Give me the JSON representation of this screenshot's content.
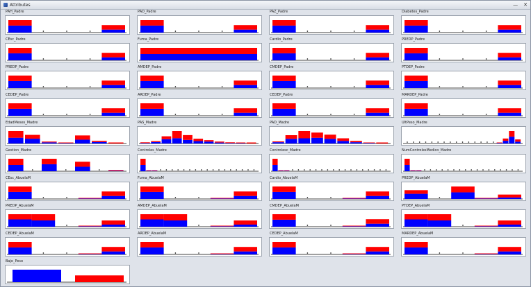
{
  "window": {
    "title": "Attributes",
    "minimize_label": "—",
    "close_label": "✕"
  },
  "colors": {
    "class_1": "#0000ff",
    "class_2": "#ff0000",
    "axis": "#000000"
  },
  "panels": [
    {
      "title": "PAH_Padre",
      "type": "binary"
    },
    {
      "title": "PAD_Padre",
      "type": "binary"
    },
    {
      "title": "PAZ_Padre",
      "type": "binary"
    },
    {
      "title": "Diabetes_Padre",
      "type": "binary"
    },
    {
      "title": "CEsc_Padre",
      "type": "binary"
    },
    {
      "title": "Fuma_Padre",
      "type": "wide"
    },
    {
      "title": "Cardio_Padre",
      "type": "binary"
    },
    {
      "title": "PREDP_Padre",
      "type": "binary"
    },
    {
      "title": "PREDP_Padre",
      "type": "binary"
    },
    {
      "title": "AMDEP_Padre",
      "type": "binary"
    },
    {
      "title": "CMDEP_Padre",
      "type": "binary"
    },
    {
      "title": "PTDEP_Padre",
      "type": "binary"
    },
    {
      "title": "CEDEP_Padre",
      "type": "binary"
    },
    {
      "title": "ARDEP_Padre",
      "type": "binary"
    },
    {
      "title": "CEDEP_Padre",
      "type": "binary"
    },
    {
      "title": "MARDEP_Padre",
      "type": "binary"
    },
    {
      "title": "EdadMeses_Madre",
      "type": "ordinal"
    },
    {
      "title": "PAS_Madre",
      "type": "spread"
    },
    {
      "title": "PAD_Madre",
      "type": "spread2"
    },
    {
      "title": "UltPeso_Madre",
      "type": "skew_right"
    },
    {
      "title": "Gestion_Madre",
      "type": "three_level"
    },
    {
      "title": "Controles_Madre",
      "type": "skew_left"
    },
    {
      "title": "Controlesc_Madre",
      "type": "skew_left"
    },
    {
      "title": "NumControlesMedico_Madre",
      "type": "skew_left"
    },
    {
      "title": "CEsc_AbuelaM",
      "type": "binary_tail"
    },
    {
      "title": "Fuma_AbuelaM",
      "type": "binary_tail"
    },
    {
      "title": "Cardio_AbuelaM",
      "type": "binary_tail"
    },
    {
      "title": "PREDP_AbuelaM",
      "type": "binary_mid"
    },
    {
      "title": "PREDP_AbuelaM",
      "type": "three_small"
    },
    {
      "title": "AMDEP_AbuelaM",
      "type": "three_small"
    },
    {
      "title": "CMDEP_AbuelaM",
      "type": "binary_tail"
    },
    {
      "title": "PTDEP_AbuelaM",
      "type": "three_small"
    },
    {
      "title": "CEDEP_AbuelaM",
      "type": "binary_tail"
    },
    {
      "title": "ARDEP_AbuelaM",
      "type": "binary_tail"
    },
    {
      "title": "CEDEP_AbuelaM",
      "type": "binary_tail"
    },
    {
      "title": "MARDEP_AbuelaM",
      "type": "binary_tail"
    },
    {
      "title": "Bajo_Peso",
      "type": "class"
    }
  ]
}
